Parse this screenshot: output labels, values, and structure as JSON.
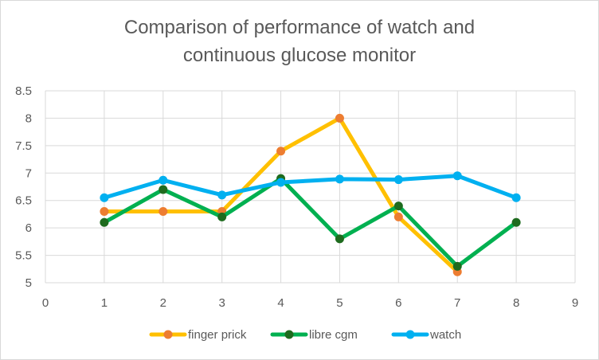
{
  "chart_data": {
    "type": "line",
    "title_line1": "Comparison of performance of watch and",
    "title_line2": "continuous glucose monitor",
    "x": [
      1,
      2,
      3,
      4,
      5,
      6,
      7,
      8
    ],
    "xlim": [
      0,
      9
    ],
    "ylim": [
      5,
      8.5
    ],
    "x_ticks": [
      "0",
      "1",
      "2",
      "3",
      "4",
      "5",
      "6",
      "7",
      "8",
      "9"
    ],
    "y_ticks": [
      "5",
      "5.5",
      "6",
      "6.5",
      "7",
      "7.5",
      "8",
      "8.5"
    ],
    "grid": true,
    "legend_position": "bottom",
    "series": [
      {
        "name": "finger prick",
        "values": [
          6.3,
          6.3,
          6.3,
          7.4,
          8.0,
          6.2,
          5.2,
          null
        ],
        "line_color": "#ffc000",
        "marker_color": "#ed7d31"
      },
      {
        "name": "libre cgm",
        "values": [
          6.1,
          6.7,
          6.2,
          6.9,
          5.8,
          6.4,
          5.3,
          6.1
        ],
        "line_color": "#00b050",
        "marker_color": "#1e6b1e"
      },
      {
        "name": "watch",
        "values": [
          6.55,
          6.87,
          6.6,
          6.83,
          6.89,
          6.88,
          6.95,
          6.55
        ],
        "line_color": "#00b0f0",
        "marker_color": "#00b0f0"
      }
    ]
  }
}
